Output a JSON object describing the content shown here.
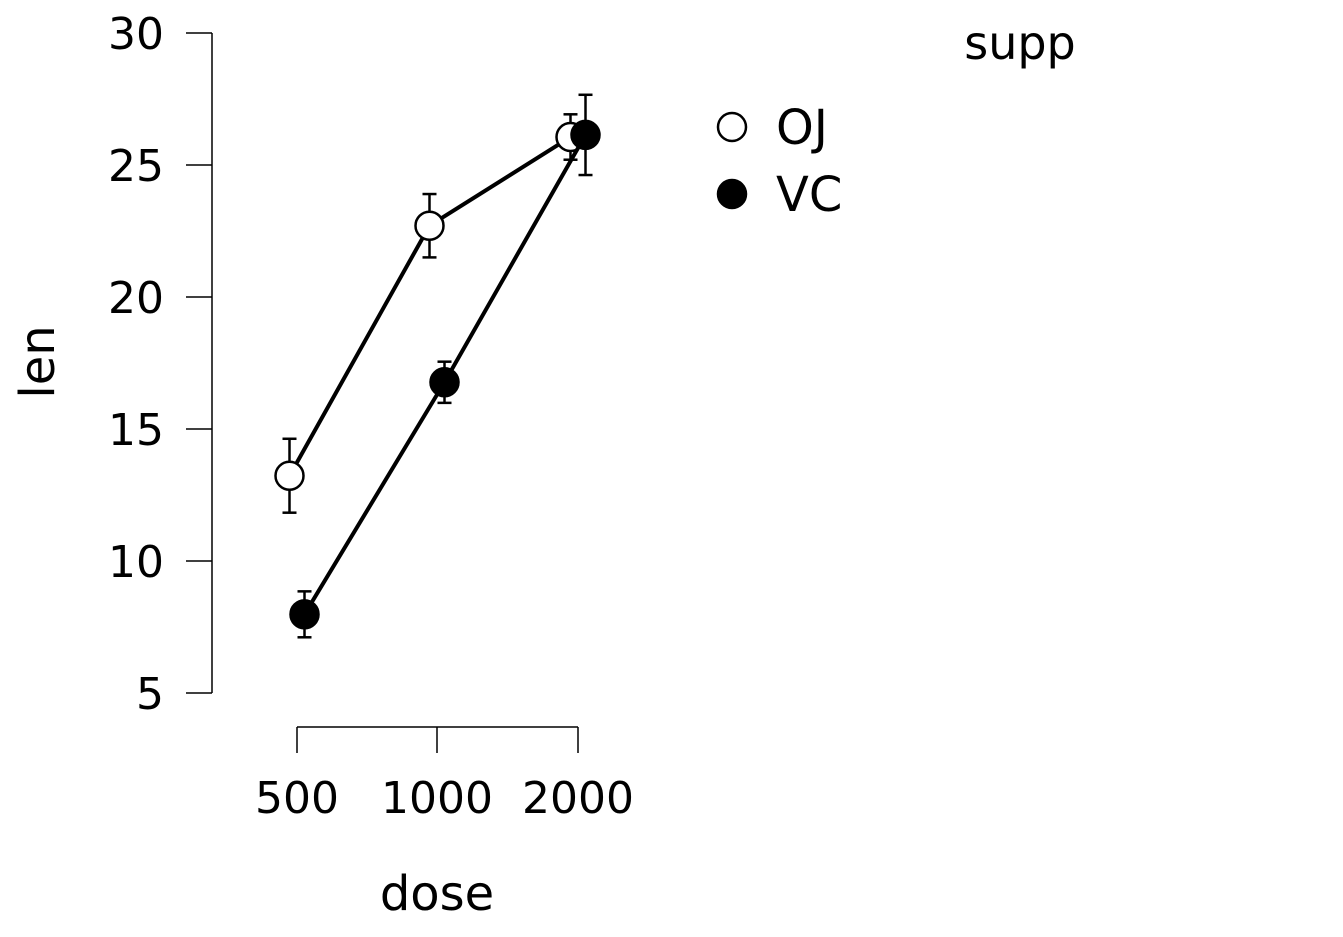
{
  "chart_data": {
    "type": "line",
    "title": "",
    "xlabel": "dose",
    "ylabel": "len",
    "categories": [
      "500",
      "1000",
      "2000"
    ],
    "yticks": [
      "5",
      "10",
      "15",
      "20",
      "25",
      "30"
    ],
    "ylim": [
      5,
      30
    ],
    "grid": false,
    "error_bars": true,
    "legend": {
      "title": "supp",
      "placement": "top-right"
    },
    "series": [
      {
        "name": "OJ",
        "marker": "open-circle",
        "values": [
          13.23,
          22.7,
          26.06
        ],
        "lower": [
          11.83,
          21.5,
          25.2
        ],
        "upper": [
          14.63,
          23.9,
          26.92
        ]
      },
      {
        "name": "VC",
        "marker": "filled-circle",
        "values": [
          7.98,
          16.77,
          26.14
        ],
        "lower": [
          7.11,
          15.99,
          24.62
        ],
        "upper": [
          8.85,
          17.55,
          27.66
        ]
      }
    ],
    "colors": {
      "line": "#000000",
      "open_fill": "#ffffff",
      "filled": "#000000"
    }
  }
}
